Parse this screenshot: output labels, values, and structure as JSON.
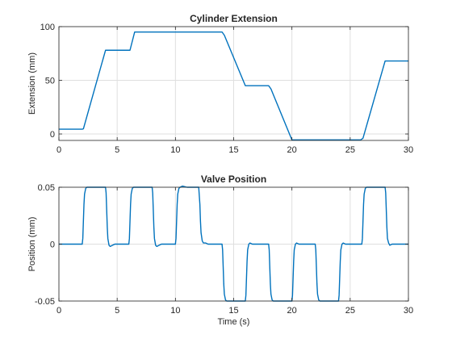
{
  "chart_data": [
    {
      "type": "line",
      "title": "Cylinder Extension",
      "xlabel": "",
      "ylabel": "Extension (mm)",
      "xlim": [
        0,
        30
      ],
      "ylim": [
        -6,
        100
      ],
      "xticks": [
        0,
        5,
        10,
        15,
        20,
        25,
        30
      ],
      "yticks": [
        0,
        50,
        100
      ],
      "grid": true,
      "color": "#0072bd",
      "series": [
        {
          "x": [
            0,
            2,
            2.1,
            4,
            6.1,
            6.5,
            14,
            14.2,
            16,
            18,
            18.2,
            20,
            25.9,
            26.1,
            28,
            30
          ],
          "y": [
            4.5,
            4.5,
            4.8,
            78,
            78,
            95,
            95,
            92,
            45,
            45,
            42,
            -5.5,
            -5.5,
            -4,
            68,
            68
          ]
        }
      ]
    },
    {
      "type": "line",
      "title": "Valve Position",
      "xlabel": "Time (s)",
      "ylabel": "Position (mm)",
      "xlim": [
        0,
        30
      ],
      "ylim": [
        -0.05,
        0.05
      ],
      "xticks": [
        0,
        5,
        10,
        15,
        20,
        25,
        30
      ],
      "yticks": [
        -0.05,
        0,
        0.05
      ],
      "ytick_labels": [
        "-0.05",
        "0",
        "0.05"
      ],
      "grid": true,
      "color": "#0072bd",
      "series": [
        {
          "x": [
            0,
            2,
            2.05,
            2.1,
            2.15,
            2.2,
            2.3,
            2.4,
            2.6,
            4,
            4.05,
            4.1,
            4.15,
            4.2,
            4.3,
            4.4,
            4.6,
            4.8,
            5,
            6,
            6.05,
            6.1,
            6.15,
            6.2,
            6.3,
            6.4,
            6.6,
            8,
            8.05,
            8.1,
            8.15,
            8.2,
            8.3,
            8.4,
            8.6,
            8.8,
            9,
            10,
            10.05,
            10.1,
            10.15,
            10.2,
            10.3,
            10.4,
            10.6,
            11,
            12,
            12.1,
            12.15,
            12.2,
            12.3,
            12.4,
            12.6,
            12.8,
            13,
            14,
            14.05,
            14.1,
            14.15,
            14.2,
            14.3,
            14.4,
            14.6,
            16,
            16.05,
            16.1,
            16.15,
            16.2,
            16.3,
            16.4,
            16.6,
            18,
            18.05,
            18.1,
            18.15,
            18.2,
            18.3,
            18.4,
            18.6,
            20,
            20.05,
            20.1,
            20.15,
            20.2,
            20.3,
            20.4,
            20.6,
            22,
            22.05,
            22.1,
            22.15,
            22.2,
            22.3,
            22.4,
            22.6,
            24,
            24.05,
            24.1,
            24.15,
            24.2,
            24.3,
            24.4,
            24.6,
            26,
            26.05,
            26.1,
            26.15,
            26.2,
            26.3,
            26.4,
            26.6,
            28,
            28.05,
            28.1,
            28.15,
            28.2,
            28.3,
            28.4,
            28.6,
            28.8,
            30
          ],
          "y": [
            0,
            0,
            0.005,
            0.02,
            0.035,
            0.044,
            0.049,
            0.05,
            0.05,
            0.05,
            0.045,
            0.03,
            0.015,
            0.005,
            -0.001,
            -0.002,
            -0.001,
            0,
            0,
            0,
            0.005,
            0.02,
            0.035,
            0.044,
            0.049,
            0.05,
            0.05,
            0.05,
            0.045,
            0.03,
            0.015,
            0.005,
            -0.001,
            -0.002,
            -0.001,
            0,
            0,
            0,
            0.005,
            0.02,
            0.035,
            0.044,
            0.049,
            0.05,
            0.051,
            0.05,
            0.05,
            0.035,
            0.02,
            0.01,
            0.003,
            0.001,
            0.001,
            0,
            0,
            0,
            -0.005,
            -0.02,
            -0.035,
            -0.044,
            -0.049,
            -0.05,
            -0.05,
            -0.05,
            -0.045,
            -0.03,
            -0.015,
            -0.005,
            0,
            0.001,
            0,
            0,
            -0.005,
            -0.02,
            -0.035,
            -0.044,
            -0.049,
            -0.05,
            -0.05,
            -0.05,
            -0.045,
            -0.03,
            -0.015,
            -0.005,
            0,
            0.001,
            0,
            0,
            -0.005,
            -0.02,
            -0.035,
            -0.044,
            -0.049,
            -0.05,
            -0.05,
            -0.05,
            -0.045,
            -0.03,
            -0.015,
            -0.005,
            0,
            0.001,
            0,
            0,
            0.005,
            0.02,
            0.035,
            0.044,
            0.049,
            0.05,
            0.05,
            0.05,
            0.045,
            0.03,
            0.015,
            0.005,
            0.001,
            -0.001,
            0,
            0,
            0
          ]
        }
      ]
    }
  ]
}
